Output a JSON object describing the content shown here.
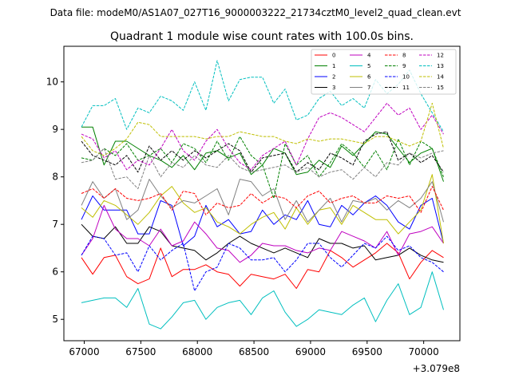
{
  "chart_data": {
    "type": "line",
    "suptitle": "Data file: modeM0/AS1A07_027T16_9000003222_21734cztM0_level2_quad_clean.evt",
    "title": "Quadrant 1 module wise count rates with 100.0s bins.",
    "xlabel": "",
    "ylabel": "",
    "x_offset_label": "+3.079e8",
    "xlim": [
      66820,
      70320
    ],
    "ylim": [
      4.55,
      10.75
    ],
    "xticks": [
      67000,
      67500,
      68000,
      68500,
      69000,
      69500,
      70000
    ],
    "xtick_labels": [
      "67000",
      "67500",
      "68000",
      "68500",
      "69000",
      "69500",
      "70000"
    ],
    "yticks": [
      5,
      6,
      7,
      8,
      9,
      10
    ],
    "ytick_labels": [
      "5",
      "6",
      "7",
      "8",
      "9",
      "10"
    ],
    "grid": false,
    "legend_position": "top-right",
    "x": [
      66975,
      67075,
      67175,
      67275,
      67375,
      67475,
      67575,
      67675,
      67775,
      67875,
      67975,
      68075,
      68175,
      68275,
      68375,
      68475,
      68575,
      68675,
      68775,
      68875,
      68975,
      69075,
      69175,
      69275,
      69375,
      69475,
      69575,
      69675,
      69775,
      69875,
      69975,
      70075,
      70175
    ],
    "series": [
      {
        "name": "0",
        "color": "#ff0000",
        "dash": "solid",
        "values": [
          6.3,
          5.95,
          6.3,
          6.35,
          5.9,
          5.75,
          5.85,
          6.5,
          5.9,
          6.05,
          6.05,
          6.15,
          6.0,
          5.95,
          5.7,
          5.95,
          5.9,
          5.85,
          5.95,
          5.65,
          6.05,
          6.0,
          6.45,
          6.3,
          6.1,
          6.25,
          6.4,
          6.6,
          6.4,
          5.85,
          6.2,
          6.45,
          6.3
        ]
      },
      {
        "name": "1",
        "color": "#008000",
        "dash": "solid",
        "values": [
          9.05,
          9.05,
          8.25,
          8.75,
          8.75,
          8.6,
          8.45,
          8.35,
          8.2,
          8.45,
          8.15,
          8.5,
          8.55,
          8.4,
          8.5,
          8.05,
          8.25,
          8.6,
          8.5,
          8.05,
          8.1,
          8.35,
          8.2,
          8.65,
          8.45,
          8.7,
          8.95,
          8.9,
          8.6,
          8.3,
          8.5,
          8.6,
          7.9
        ]
      },
      {
        "name": "2",
        "color": "#0000ff",
        "dash": "solid",
        "values": [
          7.1,
          7.6,
          7.3,
          7.3,
          7.3,
          6.8,
          6.8,
          7.5,
          7.4,
          6.55,
          6.75,
          7.4,
          6.95,
          7.1,
          6.8,
          6.85,
          7.3,
          7.0,
          7.2,
          7.1,
          7.5,
          7.0,
          6.95,
          7.4,
          7.2,
          7.45,
          7.6,
          7.4,
          7.05,
          6.9,
          7.4,
          7.55,
          6.6
        ]
      },
      {
        "name": "3",
        "color": "#000000",
        "dash": "solid",
        "values": [
          7.0,
          6.75,
          6.7,
          6.95,
          6.6,
          6.6,
          6.95,
          6.85,
          6.55,
          6.5,
          6.45,
          6.25,
          6.4,
          6.6,
          6.75,
          6.6,
          6.5,
          6.4,
          6.5,
          6.4,
          6.3,
          6.7,
          6.6,
          6.6,
          6.5,
          6.55,
          6.25,
          6.3,
          6.35,
          6.5,
          6.35,
          6.25,
          6.2
        ]
      },
      {
        "name": "4",
        "color": "#bf00bf",
        "dash": "solid",
        "values": [
          6.35,
          6.7,
          7.4,
          6.9,
          6.7,
          6.7,
          6.55,
          6.9,
          6.55,
          6.65,
          7.05,
          6.8,
          6.5,
          6.45,
          6.2,
          6.35,
          6.6,
          6.55,
          6.55,
          6.45,
          6.4,
          6.5,
          6.45,
          6.85,
          6.75,
          6.65,
          6.5,
          6.85,
          6.35,
          6.8,
          6.85,
          6.95,
          6.6
        ]
      },
      {
        "name": "5",
        "color": "#00bfbf",
        "dash": "solid",
        "values": [
          5.35,
          5.4,
          5.45,
          5.45,
          5.25,
          5.65,
          4.9,
          4.8,
          5.05,
          5.35,
          5.4,
          5.0,
          5.25,
          5.35,
          5.4,
          5.1,
          5.45,
          5.6,
          5.15,
          4.85,
          5.0,
          5.2,
          5.15,
          5.1,
          5.3,
          5.45,
          4.95,
          5.4,
          5.75,
          5.1,
          5.25,
          6.0,
          5.2
        ]
      },
      {
        "name": "6",
        "color": "#bfbf00",
        "dash": "solid",
        "values": [
          7.35,
          7.15,
          7.5,
          7.4,
          7.2,
          7.0,
          7.25,
          7.6,
          7.8,
          7.45,
          7.25,
          7.35,
          7.05,
          6.95,
          6.8,
          7.0,
          7.15,
          7.25,
          6.9,
          7.35,
          7.0,
          7.3,
          7.35,
          7.0,
          7.4,
          7.25,
          7.1,
          7.1,
          6.8,
          7.05,
          7.3,
          8.05,
          6.6
        ]
      },
      {
        "name": "7",
        "color": "#808080",
        "dash": "solid",
        "values": [
          7.4,
          7.9,
          7.55,
          7.75,
          7.1,
          7.3,
          7.95,
          7.6,
          7.35,
          7.5,
          7.45,
          7.6,
          7.75,
          7.2,
          7.95,
          7.9,
          7.6,
          7.75,
          7.1,
          7.5,
          7.05,
          7.3,
          7.55,
          7.05,
          7.5,
          7.45,
          7.55,
          7.3,
          7.5,
          7.35,
          7.55,
          7.9,
          7.05
        ]
      },
      {
        "name": "8",
        "color": "#ff0000",
        "dash": "dashed",
        "values": [
          7.65,
          7.75,
          7.55,
          7.75,
          7.55,
          7.5,
          7.55,
          7.65,
          7.3,
          7.7,
          7.65,
          7.2,
          7.45,
          7.35,
          7.4,
          7.65,
          7.45,
          7.6,
          7.55,
          7.35,
          7.6,
          7.7,
          7.45,
          7.55,
          7.6,
          7.45,
          7.45,
          7.6,
          7.55,
          7.6,
          7.25,
          7.8,
          7.3
        ]
      },
      {
        "name": "9",
        "color": "#008000",
        "dash": "dashed",
        "values": [
          8.4,
          8.35,
          8.6,
          8.45,
          8.7,
          8.35,
          8.45,
          8.6,
          8.3,
          8.7,
          8.6,
          8.3,
          8.75,
          8.35,
          8.85,
          8.45,
          8.25,
          7.55,
          8.7,
          8.25,
          8.45,
          8.0,
          8.3,
          8.7,
          8.5,
          8.2,
          8.55,
          8.15,
          8.8,
          8.25,
          8.75,
          8.6,
          8.0
        ]
      },
      {
        "name": "10",
        "color": "#0000ff",
        "dash": "dashed",
        "values": [
          6.35,
          6.75,
          6.7,
          6.35,
          6.4,
          6.0,
          6.55,
          6.25,
          6.45,
          6.6,
          5.6,
          6.0,
          6.1,
          6.6,
          6.5,
          6.25,
          6.25,
          6.3,
          6.0,
          6.25,
          6.6,
          6.6,
          6.3,
          6.1,
          6.35,
          6.6,
          6.5,
          6.75,
          6.45,
          6.55,
          6.3,
          6.2,
          6.0
        ]
      },
      {
        "name": "11",
        "color": "#000000",
        "dash": "dashed",
        "values": [
          8.75,
          8.45,
          8.35,
          8.25,
          8.45,
          8.1,
          8.65,
          8.35,
          8.55,
          8.35,
          8.55,
          8.4,
          8.55,
          8.7,
          8.55,
          8.1,
          8.4,
          8.45,
          8.5,
          8.1,
          8.3,
          8.15,
          8.5,
          8.4,
          8.25,
          8.75,
          8.9,
          8.95,
          8.35,
          8.5,
          8.3,
          8.45,
          8.1
        ]
      },
      {
        "name": "12",
        "color": "#bf00bf",
        "dash": "dashed",
        "values": [
          8.9,
          8.8,
          8.4,
          8.55,
          8.15,
          8.35,
          8.25,
          8.6,
          9.0,
          8.55,
          8.35,
          8.75,
          9.0,
          8.6,
          8.3,
          8.15,
          8.45,
          8.6,
          8.75,
          8.25,
          8.8,
          9.25,
          9.35,
          9.25,
          9.1,
          8.95,
          9.25,
          9.55,
          9.3,
          9.45,
          9.0,
          9.3,
          8.9
        ]
      },
      {
        "name": "13",
        "color": "#00bfbf",
        "dash": "dashed",
        "values": [
          9.05,
          9.5,
          9.5,
          9.65,
          9.0,
          9.45,
          9.35,
          9.7,
          9.6,
          9.4,
          10.0,
          9.4,
          10.45,
          9.6,
          10.05,
          10.1,
          10.1,
          9.55,
          9.85,
          9.2,
          9.3,
          9.65,
          9.8,
          9.5,
          9.65,
          9.45,
          10.05,
          9.75,
          9.95,
          10.25,
          9.75,
          9.35,
          8.95
        ]
      },
      {
        "name": "14",
        "color": "#bfbf00",
        "dash": "dashed",
        "values": [
          8.85,
          8.55,
          8.45,
          8.6,
          8.8,
          9.15,
          9.1,
          8.85,
          8.85,
          8.85,
          8.85,
          8.8,
          8.85,
          8.85,
          8.95,
          8.9,
          8.85,
          8.85,
          8.75,
          8.7,
          8.8,
          8.75,
          8.8,
          8.8,
          8.75,
          8.7,
          8.85,
          8.85,
          8.75,
          8.65,
          8.75,
          9.55,
          8.6
        ]
      },
      {
        "name": "15",
        "color": "#808080",
        "dash": "dashed",
        "values": [
          8.3,
          8.35,
          8.6,
          7.95,
          8.0,
          7.75,
          8.45,
          8.0,
          8.3,
          8.2,
          8.45,
          8.25,
          8.2,
          8.45,
          8.2,
          8.1,
          8.15,
          8.2,
          8.25,
          8.1,
          8.2,
          8.0,
          8.1,
          8.15,
          7.95,
          8.2,
          8.0,
          8.3,
          8.25,
          8.5,
          8.4,
          8.5,
          8.55
        ]
      }
    ]
  }
}
